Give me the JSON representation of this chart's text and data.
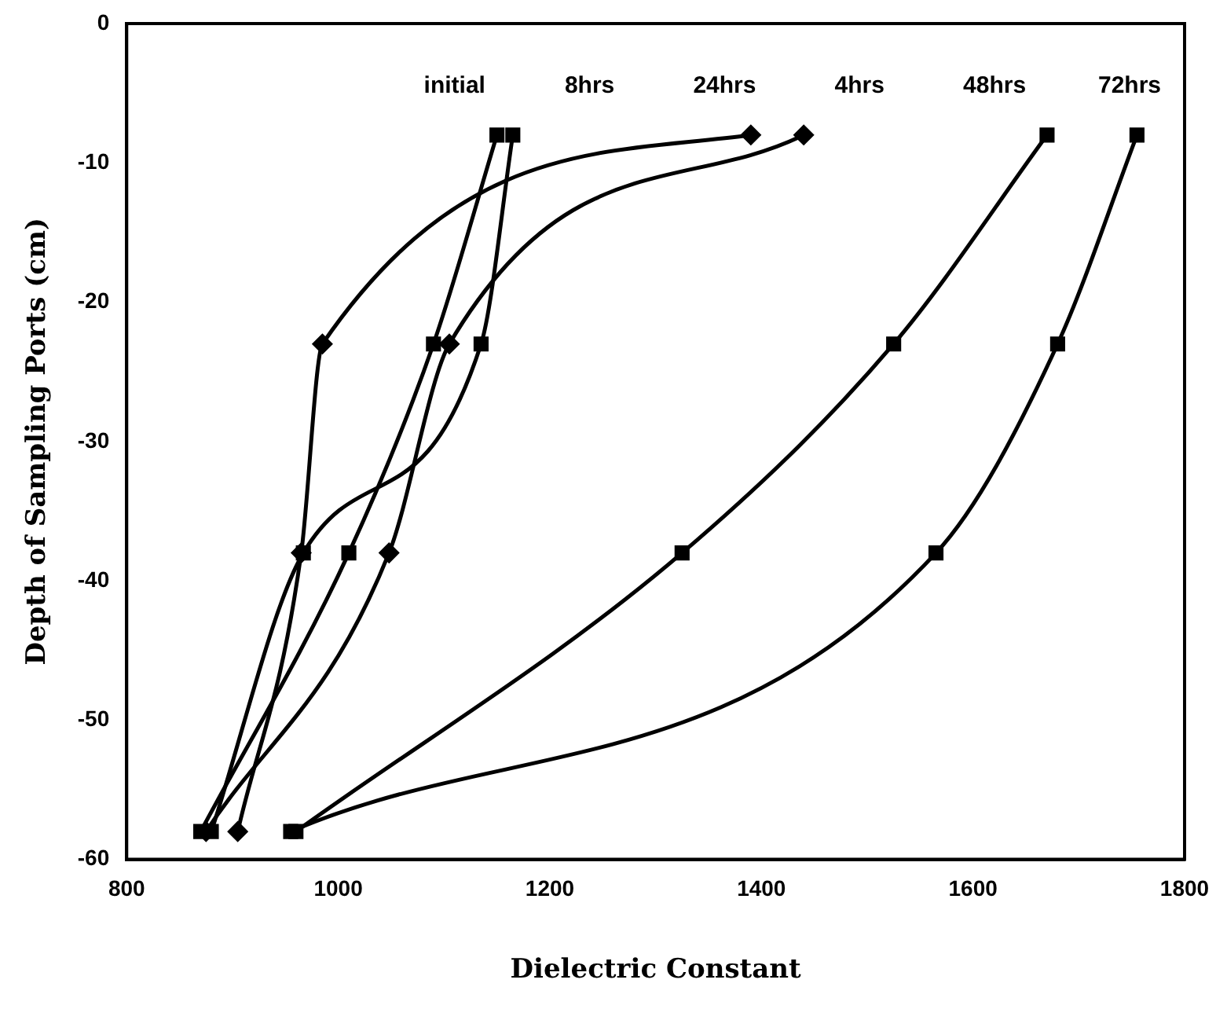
{
  "chart_data": {
    "type": "line",
    "xlabel": "Dielectric Constant",
    "ylabel": "Depth of Sampling Ports (cm)",
    "xlim": [
      800,
      1800
    ],
    "xticks": [
      800,
      1000,
      1200,
      1400,
      1600,
      1800
    ],
    "ylim": [
      -60,
      0
    ],
    "yticks": [
      -60,
      -50,
      -40,
      -30,
      -20,
      -10,
      0
    ],
    "grid": false,
    "legend": false,
    "line_style": "solid",
    "series": [
      {
        "name": "initial",
        "color": "#000000",
        "marker": "diamond",
        "x": [
          1390,
          985,
          965,
          905
        ],
        "values": [
          -8,
          -23,
          -38,
          -58
        ]
      },
      {
        "name": "8hrs",
        "color": "#000000",
        "marker": "square",
        "x": [
          1150,
          1090,
          1010,
          870
        ],
        "values": [
          -8,
          -23,
          -38,
          -58
        ]
      },
      {
        "name": "24hrs",
        "color": "#000000",
        "marker": "square",
        "x": [
          1165,
          1135,
          967,
          880
        ],
        "values": [
          -8,
          -23,
          -38,
          -58
        ]
      },
      {
        "name": "4hrs",
        "color": "#000000",
        "marker": "diamond",
        "x": [
          1440,
          1105,
          1048,
          875
        ],
        "values": [
          -8,
          -23,
          -38,
          -58
        ]
      },
      {
        "name": "48hrs",
        "color": "#000000",
        "marker": "square",
        "x": [
          1670,
          1525,
          1325,
          960
        ],
        "values": [
          -8,
          -23,
          -38,
          -58
        ]
      },
      {
        "name": "72hrs",
        "color": "#000000",
        "marker": "square",
        "x": [
          1755,
          1680,
          1565,
          955
        ],
        "values": [
          -8,
          -23,
          -38,
          -58
        ]
      }
    ]
  }
}
